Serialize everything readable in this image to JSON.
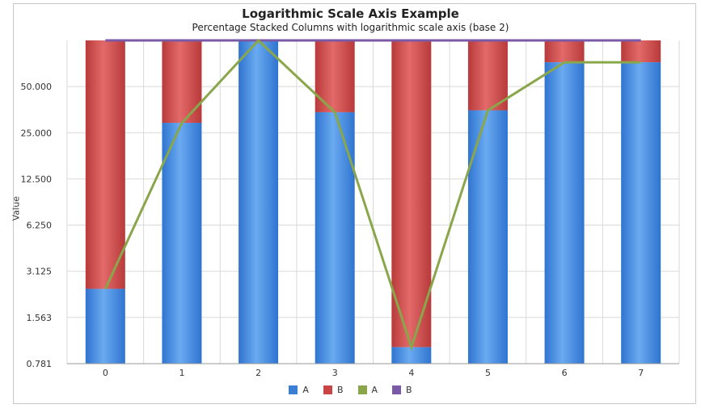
{
  "title": "Logarithmic Scale Axis Example",
  "subtitle": "Percentage Stacked Columns with logarithmic scale axis (base 2)",
  "chart_data": {
    "type": "bar",
    "stacked": "percent",
    "log_base": 2,
    "title": "Logarithmic Scale Axis Example",
    "subtitle": "Percentage Stacked Columns with logarithmic scale axis (base 2)",
    "ylabel": "Value",
    "categories": [
      "0",
      "1",
      "2",
      "3",
      "4",
      "5",
      "6",
      "7"
    ],
    "y_ticks": [
      "0.781",
      "1.563",
      "3.125",
      "6.250",
      "12.500",
      "25.000",
      "50.000"
    ],
    "ylim": [
      0.781,
      100
    ],
    "grid": true,
    "legend_position": "bottom",
    "series": [
      {
        "name": "A",
        "kind": "column",
        "color": "#3a7fd5",
        "values": [
          2.4,
          29,
          100,
          34,
          1.0,
          35,
          72,
          72
        ]
      },
      {
        "name": "B",
        "kind": "column",
        "color": "#c94444",
        "values": [
          97.6,
          71,
          0,
          66,
          99.0,
          65,
          28,
          28
        ]
      },
      {
        "name": "A",
        "kind": "line",
        "color": "#8aa64b",
        "values": [
          2.4,
          29,
          100,
          34,
          1.0,
          35,
          72,
          72
        ]
      },
      {
        "name": "B",
        "kind": "line",
        "color": "#7a5aa6",
        "values": [
          100,
          100,
          100,
          100,
          100,
          100,
          100,
          100
        ]
      }
    ]
  }
}
